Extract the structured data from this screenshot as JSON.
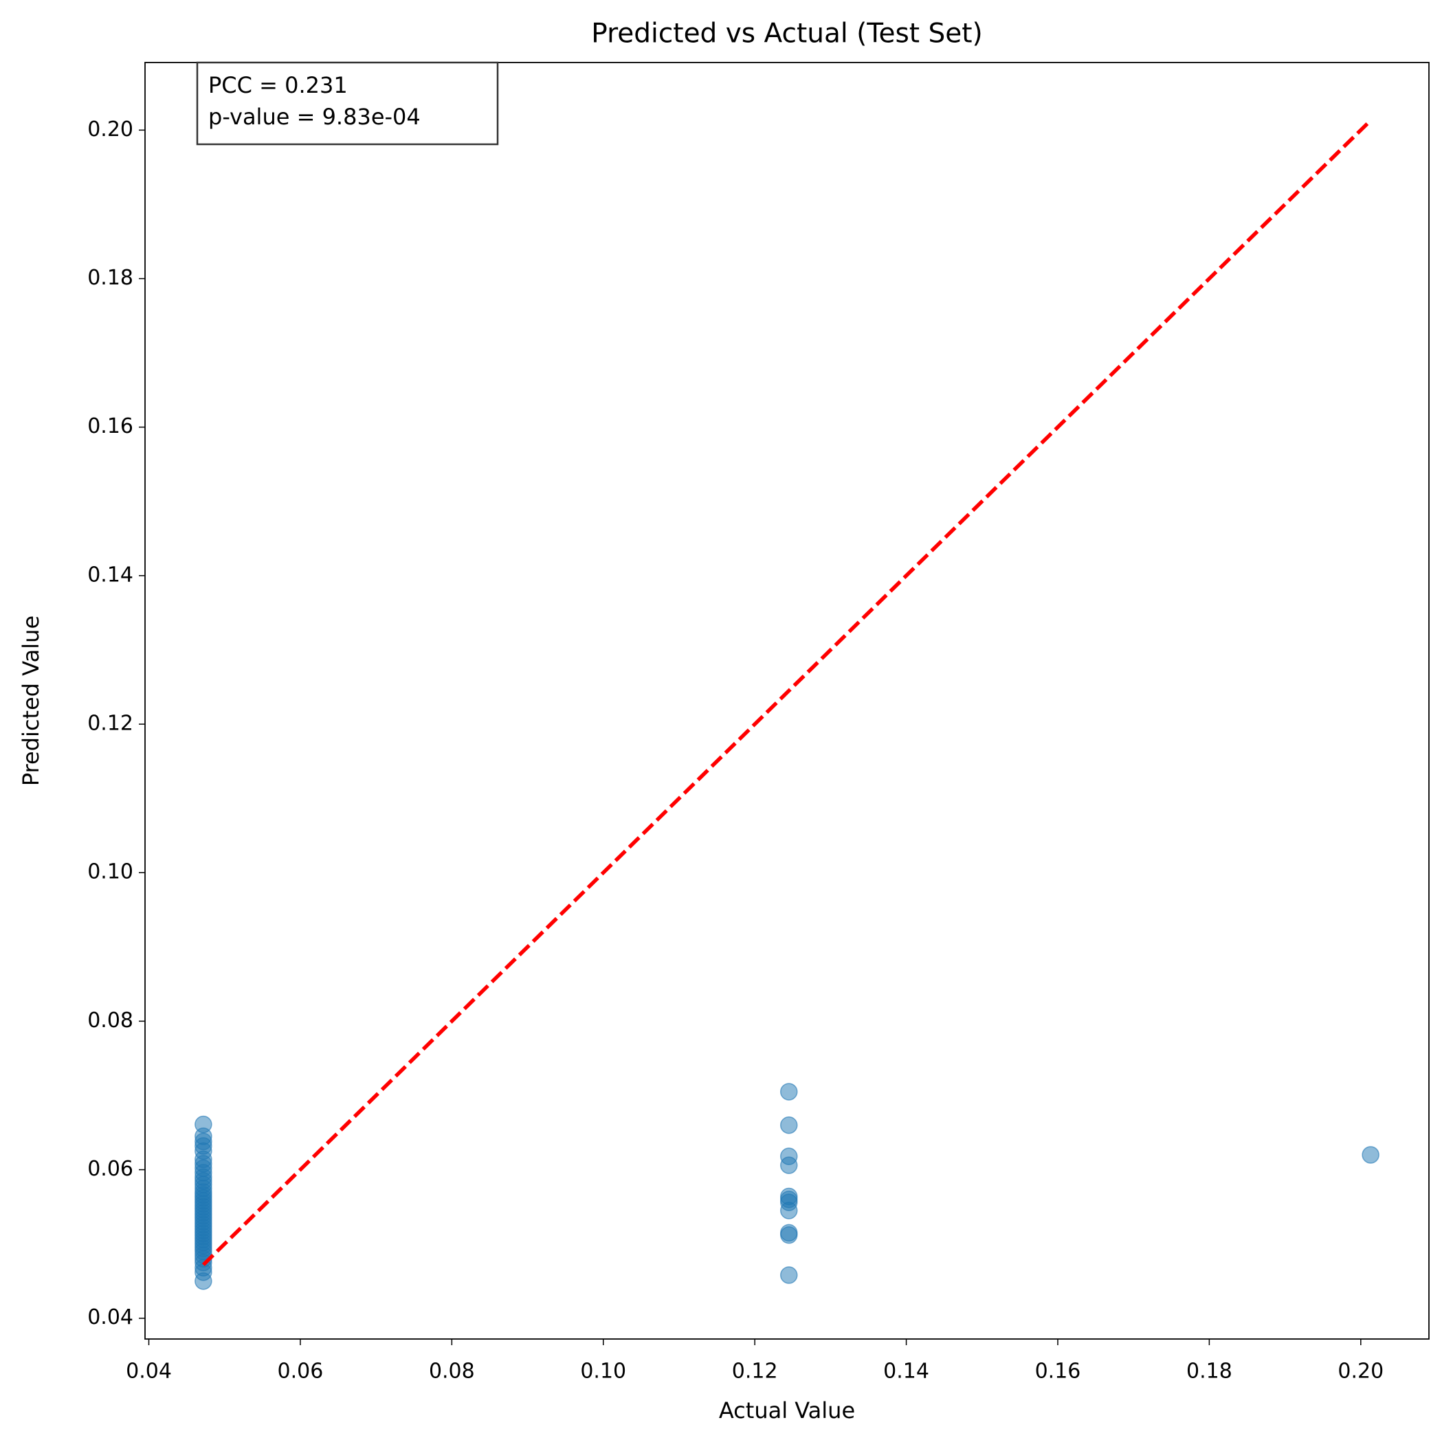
{
  "chart_data": {
    "type": "scatter",
    "title": "Predicted vs Actual (Test Set)",
    "x_label": "Actual Value",
    "y_label": "Predicted Value",
    "annotation": [
      "PCC = 0.231",
      "p-value = 9.83e-04"
    ],
    "xlim": [
      0.0395,
      0.209
    ],
    "ylim": [
      0.0372,
      0.2091
    ],
    "xticks": [
      {
        "value": 0.04,
        "label": "0.04"
      },
      {
        "value": 0.06,
        "label": "0.06"
      },
      {
        "value": 0.08,
        "label": "0.08"
      },
      {
        "value": 0.1,
        "label": "0.10"
      },
      {
        "value": 0.12,
        "label": "0.12"
      },
      {
        "value": 0.14,
        "label": "0.14"
      },
      {
        "value": 0.16,
        "label": "0.16"
      },
      {
        "value": 0.18,
        "label": "0.18"
      },
      {
        "value": 0.2,
        "label": "0.20"
      }
    ],
    "yticks": [
      {
        "value": 0.04,
        "label": "0.04"
      },
      {
        "value": 0.06,
        "label": "0.06"
      },
      {
        "value": 0.08,
        "label": "0.08"
      },
      {
        "value": 0.1,
        "label": "0.10"
      },
      {
        "value": 0.12,
        "label": "0.12"
      },
      {
        "value": 0.14,
        "label": "0.14"
      },
      {
        "value": 0.16,
        "label": "0.16"
      },
      {
        "value": 0.18,
        "label": "0.18"
      },
      {
        "value": 0.2,
        "label": "0.20"
      }
    ],
    "series": [
      {
        "color": "#1f77b4",
        "x": [
          0.0472,
          0.0472,
          0.0472,
          0.0472,
          0.0472,
          0.0472,
          0.0472,
          0.0472,
          0.0472,
          0.0472,
          0.0472,
          0.0472,
          0.0472,
          0.0472,
          0.0472,
          0.0472,
          0.0472,
          0.0472,
          0.0472,
          0.0472,
          0.0472,
          0.0472,
          0.0472,
          0.0472,
          0.0472,
          0.0472,
          0.0472,
          0.0472,
          0.0472,
          0.0472,
          0.0472,
          0.0472,
          0.0472,
          0.0472,
          0.0472,
          0.0472,
          0.0472,
          0.0472,
          0.0472,
          0.0472,
          0.1245,
          0.1245,
          0.1245,
          0.1245,
          0.1245,
          0.1245,
          0.1245,
          0.1245,
          0.1245,
          0.1245,
          0.1245,
          0.2013
        ],
        "y": [
          0.045,
          0.0462,
          0.0468,
          0.0475,
          0.048,
          0.0485,
          0.049,
          0.0494,
          0.0498,
          0.0502,
          0.0506,
          0.051,
          0.0514,
          0.0518,
          0.0522,
          0.0526,
          0.053,
          0.0534,
          0.0538,
          0.0542,
          0.0546,
          0.055,
          0.0554,
          0.0558,
          0.0562,
          0.0566,
          0.057,
          0.0575,
          0.058,
          0.0585,
          0.059,
          0.0596,
          0.0602,
          0.0608,
          0.0614,
          0.0625,
          0.0632,
          0.0638,
          0.0645,
          0.0661,
          0.0705,
          0.066,
          0.0618,
          0.0606,
          0.0564,
          0.056,
          0.0556,
          0.0545,
          0.0515,
          0.0512,
          0.0458,
          0.062
        ]
      }
    ],
    "reference_line": {
      "color": "#ff0000",
      "x": [
        0.0472,
        0.2013
      ],
      "y": [
        0.0472,
        0.2013
      ]
    }
  }
}
